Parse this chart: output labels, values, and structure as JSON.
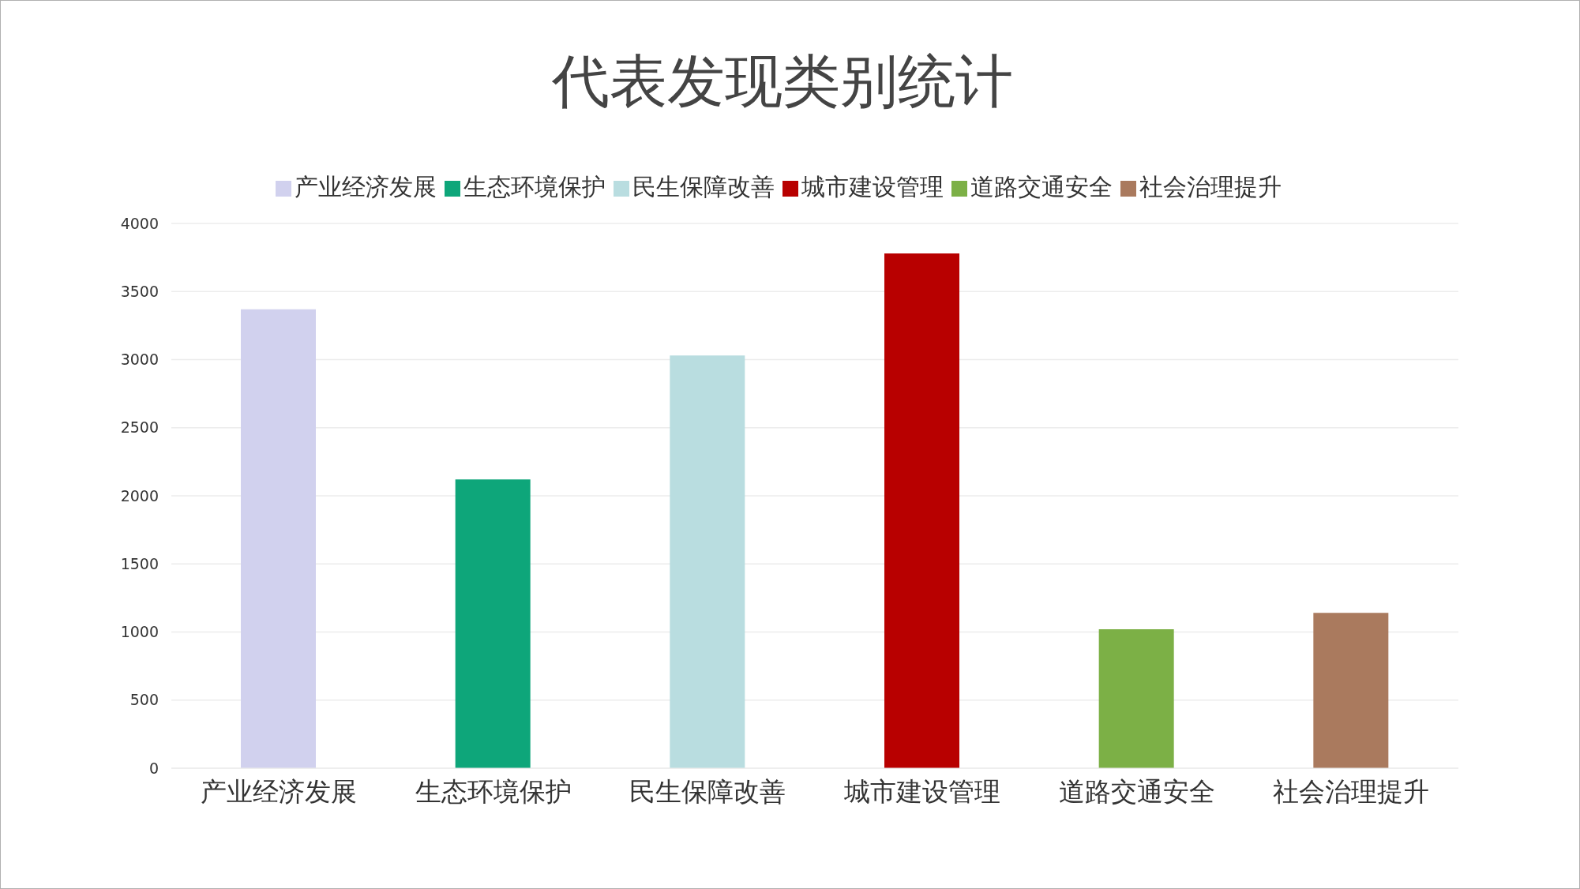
{
  "chart_data": {
    "type": "bar",
    "title": "代表发现类别统计",
    "categories": [
      "产业经济发展",
      "生态环境保护",
      "民生保障改善",
      "城市建设管理",
      "道路交通安全",
      "社会治理提升"
    ],
    "series": [
      {
        "name": "产业经济发展",
        "color": "#d1d1ee",
        "values": [
          3370,
          null,
          null,
          null,
          null,
          null
        ]
      },
      {
        "name": "生态环境保护",
        "color": "#0ea67a",
        "values": [
          null,
          2120,
          null,
          null,
          null,
          null
        ]
      },
      {
        "name": "民生保障改善",
        "color": "#b9dde0",
        "values": [
          null,
          null,
          3030,
          null,
          null,
          null
        ]
      },
      {
        "name": "城市建设管理",
        "color": "#b80000",
        "values": [
          null,
          null,
          null,
          3780,
          null,
          null
        ]
      },
      {
        "name": "道路交通安全",
        "color": "#7cb046",
        "values": [
          null,
          null,
          null,
          null,
          1020,
          null
        ]
      },
      {
        "name": "社会治理提升",
        "color": "#aa7a5e",
        "values": [
          null,
          null,
          null,
          null,
          null,
          1140
        ]
      }
    ],
    "ylim": [
      0,
      4000
    ],
    "yticks": [
      0,
      500,
      1000,
      1500,
      2000,
      2500,
      3000,
      3500,
      4000
    ],
    "grid": "y",
    "legend": "top"
  }
}
